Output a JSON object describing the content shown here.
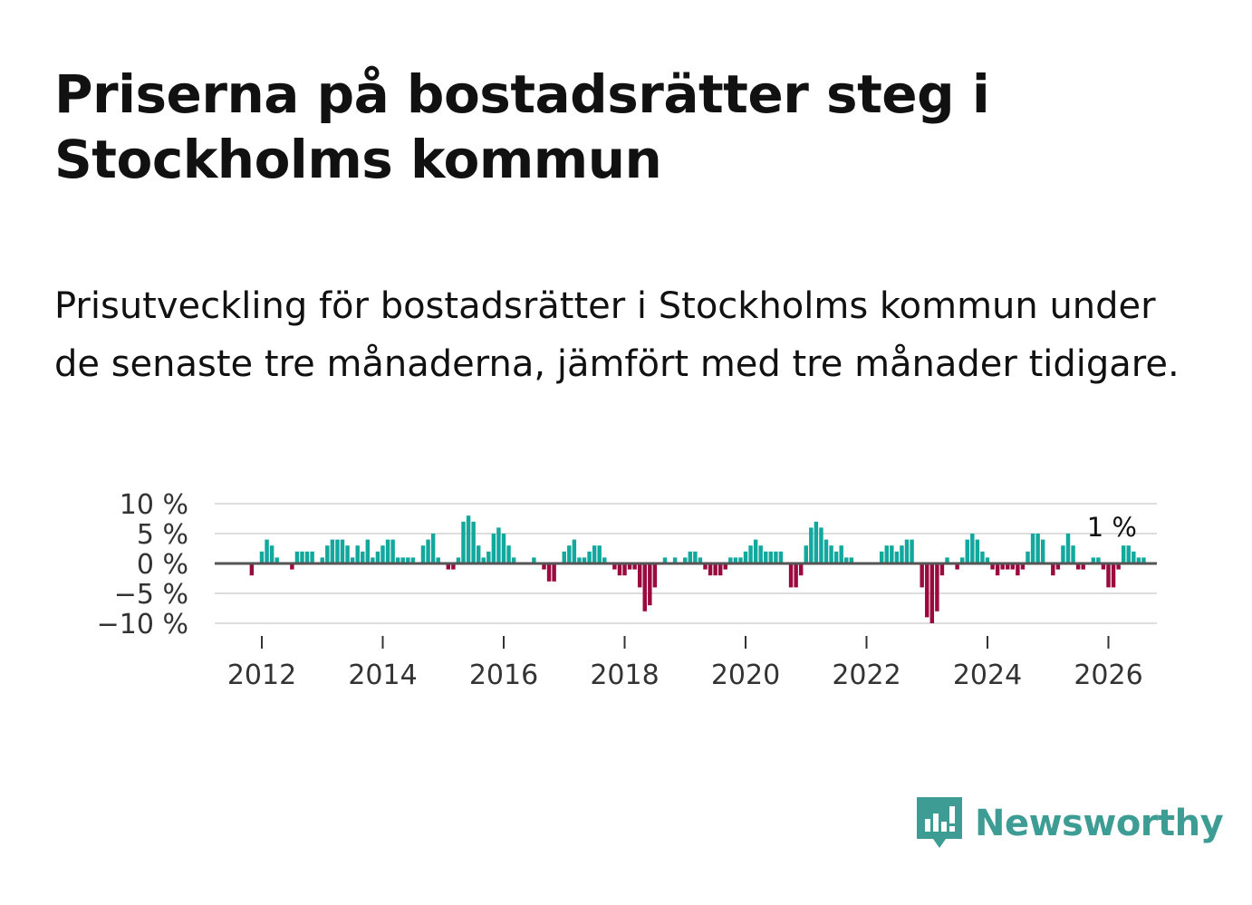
{
  "header": {
    "title": "Priserna på bostadsrätter steg i Stockholms kommun",
    "subtitle": "Prisutveckling för bostadsrätter i Stockholms kommun under de senaste tre månaderna, jämfört med tre månader tidigare."
  },
  "brand": {
    "name": "Newsworthy",
    "color": "#3d9c94"
  },
  "colors": {
    "positive": "#13a89e",
    "negative": "#9b0a3e",
    "zero_line": "#555555",
    "grid": "#dddddd"
  },
  "chart_data": {
    "type": "bar",
    "title": "",
    "xlabel": "",
    "ylabel": "",
    "ylim": [
      -10,
      10
    ],
    "yticks": [
      10,
      5,
      0,
      -5,
      -10
    ],
    "ytick_labels": [
      "10 %",
      "5 %",
      "0 %",
      "−5 %",
      "−10 %"
    ],
    "xticks": [
      2012,
      2014,
      2016,
      2018,
      2020,
      2022,
      2024,
      2026
    ],
    "xtick_labels": [
      "2012",
      "2014",
      "2016",
      "2018",
      "2020",
      "2022",
      "2024",
      "2026"
    ],
    "start_year": 2011.0833,
    "annotation": "1 %",
    "series": [
      {
        "name": "Prisutveckling",
        "interval": "monthly",
        "values": [
          0,
          0,
          0,
          0,
          0,
          0,
          0,
          0,
          0,
          -2,
          0,
          2,
          4,
          3,
          1,
          0,
          0,
          -1,
          2,
          2,
          2,
          2,
          0,
          1,
          3,
          4,
          4,
          4,
          3,
          1,
          3,
          2,
          4,
          1,
          2,
          3,
          4,
          4,
          1,
          1,
          1,
          1,
          0,
          3,
          4,
          5,
          1,
          0,
          -1,
          -1,
          1,
          7,
          8,
          7,
          3,
          1,
          2,
          5,
          6,
          5,
          3,
          1,
          0,
          0,
          0,
          1,
          0,
          -1,
          -3,
          -3,
          0,
          2,
          3,
          4,
          1,
          1,
          2,
          3,
          3,
          1,
          0,
          -1,
          -2,
          -2,
          -1,
          -1,
          -4,
          -8,
          -7,
          -4,
          0,
          1,
          0,
          1,
          0,
          1,
          2,
          2,
          1,
          -1,
          -2,
          -2,
          -2,
          -1,
          1,
          1,
          1,
          2,
          3,
          4,
          3,
          2,
          2,
          2,
          2,
          0,
          -4,
          -4,
          -2,
          3,
          6,
          7,
          6,
          4,
          3,
          2,
          3,
          1,
          1,
          0,
          0,
          0,
          0,
          0,
          2,
          3,
          3,
          2,
          3,
          4,
          4,
          0,
          -4,
          -9,
          -10,
          -8,
          -2,
          1,
          0,
          -1,
          1,
          4,
          5,
          4,
          2,
          1,
          -1,
          -2,
          -1,
          -1,
          -1,
          -2,
          -1,
          2,
          5,
          5,
          4,
          0,
          -2,
          -1,
          3,
          5,
          3,
          -1,
          -1,
          0,
          1,
          1,
          -1,
          -4,
          -4,
          -1,
          3,
          3,
          2,
          1,
          1
        ]
      }
    ]
  }
}
